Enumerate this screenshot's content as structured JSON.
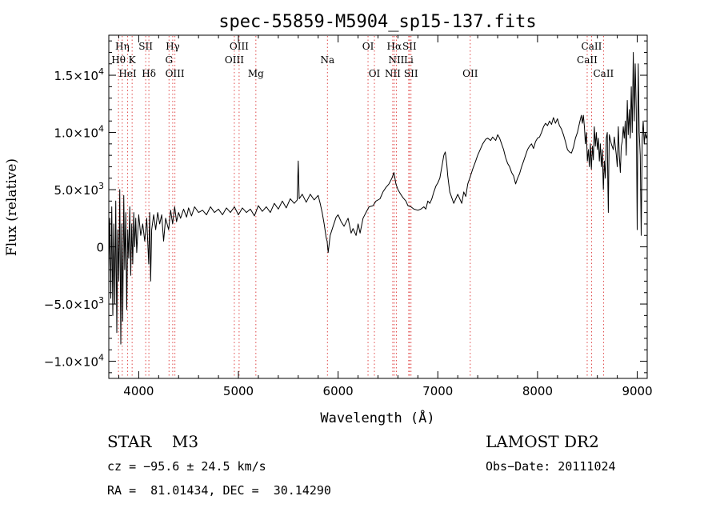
{
  "chart_data": {
    "type": "line",
    "title": "spec-55859-M5904_sp15-137.fits",
    "xlabel": "Wavelength (Å)",
    "ylabel": "Flux (relative)",
    "xlim": [
      3700,
      9100
    ],
    "ylim": [
      -11500,
      18500
    ],
    "xticks": [
      4000,
      5000,
      6000,
      7000,
      8000,
      9000
    ],
    "xtick_labels": [
      "4000",
      "5000",
      "6000",
      "7000",
      "8000",
      "9000"
    ],
    "yticks": [
      {
        "value": 15000,
        "mant": "1.5×10",
        "exp": "4"
      },
      {
        "value": 10000,
        "mant": "1.0×10",
        "exp": "4"
      },
      {
        "value": 5000,
        "mant": "5.0×10",
        "exp": "3"
      },
      {
        "value": 0,
        "mant": "0",
        "exp": ""
      },
      {
        "value": -5000,
        "mant": "−5.0×10",
        "exp": "3"
      },
      {
        "value": -10000,
        "mant": "−1.0×10",
        "exp": "4"
      }
    ],
    "grid": false,
    "series": [
      {
        "color": "#000000",
        "points": [
          [
            3700,
            -2000
          ],
          [
            3710,
            2500
          ],
          [
            3720,
            -4500
          ],
          [
            3730,
            3500
          ],
          [
            3740,
            -6000
          ],
          [
            3750,
            2000
          ],
          [
            3760,
            -5000
          ],
          [
            3770,
            4000
          ],
          [
            3780,
            -7500
          ],
          [
            3790,
            1500
          ],
          [
            3800,
            -3000
          ],
          [
            3810,
            5000
          ],
          [
            3820,
            -8500
          ],
          [
            3830,
            2000
          ],
          [
            3840,
            -6500
          ],
          [
            3850,
            4500
          ],
          [
            3860,
            -2000
          ],
          [
            3870,
            3000
          ],
          [
            3880,
            -5500
          ],
          [
            3890,
            1500
          ],
          [
            3900,
            -1000
          ],
          [
            3910,
            3500
          ],
          [
            3920,
            -2500
          ],
          [
            3930,
            2000
          ],
          [
            3940,
            -1500
          ],
          [
            3950,
            3000
          ],
          [
            3960,
            0
          ],
          [
            3970,
            2500
          ],
          [
            3980,
            -500
          ],
          [
            4000,
            2800
          ],
          [
            4020,
            1000
          ],
          [
            4040,
            2000
          ],
          [
            4060,
            500
          ],
          [
            4080,
            2500
          ],
          [
            4100,
            -1500
          ],
          [
            4110,
            3000
          ],
          [
            4120,
            -3000
          ],
          [
            4130,
            1500
          ],
          [
            4150,
            2800
          ],
          [
            4170,
            1500
          ],
          [
            4190,
            3000
          ],
          [
            4210,
            2000
          ],
          [
            4230,
            2800
          ],
          [
            4250,
            500
          ],
          [
            4270,
            2500
          ],
          [
            4300,
            1500
          ],
          [
            4320,
            3200
          ],
          [
            4340,
            2000
          ],
          [
            4360,
            3500
          ],
          [
            4380,
            2200
          ],
          [
            4400,
            3000
          ],
          [
            4420,
            2500
          ],
          [
            4450,
            3300
          ],
          [
            4480,
            2600
          ],
          [
            4500,
            3400
          ],
          [
            4530,
            2700
          ],
          [
            4560,
            3500
          ],
          [
            4600,
            3000
          ],
          [
            4640,
            3200
          ],
          [
            4680,
            2800
          ],
          [
            4720,
            3500
          ],
          [
            4760,
            3000
          ],
          [
            4800,
            3300
          ],
          [
            4840,
            2800
          ],
          [
            4880,
            3400
          ],
          [
            4920,
            3000
          ],
          [
            4960,
            3500
          ],
          [
            5000,
            2800
          ],
          [
            5040,
            3400
          ],
          [
            5080,
            3000
          ],
          [
            5120,
            3300
          ],
          [
            5160,
            2700
          ],
          [
            5200,
            3600
          ],
          [
            5240,
            3100
          ],
          [
            5280,
            3500
          ],
          [
            5320,
            3000
          ],
          [
            5360,
            3800
          ],
          [
            5400,
            3300
          ],
          [
            5440,
            4000
          ],
          [
            5480,
            3400
          ],
          [
            5520,
            4200
          ],
          [
            5560,
            3800
          ],
          [
            5590,
            4100
          ],
          [
            5600,
            7500
          ],
          [
            5610,
            4200
          ],
          [
            5640,
            4600
          ],
          [
            5680,
            3900
          ],
          [
            5720,
            4600
          ],
          [
            5760,
            4100
          ],
          [
            5800,
            4500
          ],
          [
            5820,
            3800
          ],
          [
            5840,
            3000
          ],
          [
            5860,
            2000
          ],
          [
            5880,
            800
          ],
          [
            5890,
            500
          ],
          [
            5900,
            -500
          ],
          [
            5920,
            1000
          ],
          [
            5950,
            1800
          ],
          [
            5980,
            2600
          ],
          [
            6000,
            2800
          ],
          [
            6030,
            2200
          ],
          [
            6060,
            1800
          ],
          [
            6100,
            2500
          ],
          [
            6130,
            1200
          ],
          [
            6150,
            1600
          ],
          [
            6180,
            1000
          ],
          [
            6200,
            2000
          ],
          [
            6220,
            1200
          ],
          [
            6250,
            2500
          ],
          [
            6280,
            3000
          ],
          [
            6310,
            3500
          ],
          [
            6350,
            3600
          ],
          [
            6380,
            4000
          ],
          [
            6420,
            4200
          ],
          [
            6450,
            4800
          ],
          [
            6480,
            5200
          ],
          [
            6510,
            5500
          ],
          [
            6540,
            6000
          ],
          [
            6560,
            6500
          ],
          [
            6580,
            5500
          ],
          [
            6600,
            5000
          ],
          [
            6620,
            4700
          ],
          [
            6650,
            4300
          ],
          [
            6680,
            4000
          ],
          [
            6700,
            3600
          ],
          [
            6730,
            3500
          ],
          [
            6760,
            3300
          ],
          [
            6800,
            3200
          ],
          [
            6830,
            3300
          ],
          [
            6860,
            3500
          ],
          [
            6880,
            3300
          ],
          [
            6900,
            4000
          ],
          [
            6920,
            3800
          ],
          [
            6940,
            4200
          ],
          [
            6960,
            4800
          ],
          [
            6980,
            5300
          ],
          [
            7000,
            5600
          ],
          [
            7020,
            6000
          ],
          [
            7040,
            7000
          ],
          [
            7060,
            8000
          ],
          [
            7075,
            8300
          ],
          [
            7090,
            7200
          ],
          [
            7100,
            6200
          ],
          [
            7120,
            4800
          ],
          [
            7140,
            4300
          ],
          [
            7160,
            3800
          ],
          [
            7180,
            4200
          ],
          [
            7200,
            4600
          ],
          [
            7220,
            4200
          ],
          [
            7240,
            3800
          ],
          [
            7260,
            4800
          ],
          [
            7280,
            4400
          ],
          [
            7300,
            5500
          ],
          [
            7320,
            6000
          ],
          [
            7350,
            6800
          ],
          [
            7380,
            7500
          ],
          [
            7400,
            8000
          ],
          [
            7420,
            8400
          ],
          [
            7450,
            9000
          ],
          [
            7480,
            9400
          ],
          [
            7500,
            9500
          ],
          [
            7530,
            9300
          ],
          [
            7550,
            9600
          ],
          [
            7580,
            9300
          ],
          [
            7600,
            9800
          ],
          [
            7620,
            9500
          ],
          [
            7640,
            9000
          ],
          [
            7660,
            8500
          ],
          [
            7680,
            7800
          ],
          [
            7700,
            7300
          ],
          [
            7720,
            7000
          ],
          [
            7740,
            6500
          ],
          [
            7760,
            6200
          ],
          [
            7780,
            5500
          ],
          [
            7800,
            6000
          ],
          [
            7820,
            6400
          ],
          [
            7840,
            7000
          ],
          [
            7860,
            7500
          ],
          [
            7880,
            8000
          ],
          [
            7900,
            8500
          ],
          [
            7920,
            8800
          ],
          [
            7940,
            9000
          ],
          [
            7960,
            8600
          ],
          [
            7980,
            9200
          ],
          [
            8000,
            9500
          ],
          [
            8020,
            9600
          ],
          [
            8040,
            10000
          ],
          [
            8060,
            10500
          ],
          [
            8080,
            10800
          ],
          [
            8100,
            10600
          ],
          [
            8120,
            11000
          ],
          [
            8140,
            10700
          ],
          [
            8160,
            11300
          ],
          [
            8180,
            10800
          ],
          [
            8200,
            11200
          ],
          [
            8220,
            10600
          ],
          [
            8240,
            10300
          ],
          [
            8260,
            9800
          ],
          [
            8280,
            9200
          ],
          [
            8300,
            8500
          ],
          [
            8320,
            8300
          ],
          [
            8340,
            8200
          ],
          [
            8360,
            8700
          ],
          [
            8380,
            9500
          ],
          [
            8400,
            10000
          ],
          [
            8420,
            10800
          ],
          [
            8440,
            11500
          ],
          [
            8450,
            10800
          ],
          [
            8460,
            11500
          ],
          [
            8470,
            10500
          ],
          [
            8480,
            9000
          ],
          [
            8490,
            10000
          ],
          [
            8500,
            7500
          ],
          [
            8510,
            8500
          ],
          [
            8520,
            7000
          ],
          [
            8530,
            9000
          ],
          [
            8540,
            6800
          ],
          [
            8550,
            8800
          ],
          [
            8560,
            7600
          ],
          [
            8570,
            10500
          ],
          [
            8580,
            8800
          ],
          [
            8590,
            10000
          ],
          [
            8600,
            8500
          ],
          [
            8610,
            9500
          ],
          [
            8620,
            7500
          ],
          [
            8630,
            9000
          ],
          [
            8640,
            7000
          ],
          [
            8650,
            8500
          ],
          [
            8660,
            5000
          ],
          [
            8670,
            7500
          ],
          [
            8680,
            6000
          ],
          [
            8690,
            9500
          ],
          [
            8700,
            10000
          ],
          [
            8705,
            5500
          ],
          [
            8710,
            3000
          ],
          [
            8715,
            7000
          ],
          [
            8720,
            9800
          ],
          [
            8740,
            9000
          ],
          [
            8760,
            8500
          ],
          [
            8770,
            9600
          ],
          [
            8780,
            8800
          ],
          [
            8790,
            8000
          ],
          [
            8800,
            7000
          ],
          [
            8810,
            10500
          ],
          [
            8820,
            8000
          ],
          [
            8830,
            6500
          ],
          [
            8840,
            8800
          ],
          [
            8850,
            9200
          ],
          [
            8860,
            10500
          ],
          [
            8870,
            9500
          ],
          [
            8880,
            11000
          ],
          [
            8890,
            8000
          ],
          [
            8900,
            12800
          ],
          [
            8910,
            9800
          ],
          [
            8920,
            12000
          ],
          [
            8930,
            9500
          ],
          [
            8940,
            14000
          ],
          [
            8950,
            10000
          ],
          [
            8960,
            17000
          ],
          [
            8970,
            11000
          ],
          [
            8980,
            16000
          ],
          [
            8990,
            12000
          ],
          [
            9000,
            1500
          ],
          [
            9010,
            16000
          ],
          [
            9020,
            10000
          ],
          [
            9030,
            8000
          ],
          [
            9040,
            1000
          ],
          [
            9050,
            9500
          ],
          [
            9060,
            11000
          ],
          [
            9070,
            9000
          ],
          [
            9080,
            10000
          ],
          [
            9090,
            9500
          ],
          [
            9100,
            9800
          ]
        ]
      }
    ],
    "lines": [
      {
        "label": "Hη",
        "x": 3835,
        "row": 0
      },
      {
        "label": "Hθ",
        "x": 3797,
        "row": 1
      },
      {
        "label": "HeI",
        "x": 3889,
        "row": 2
      },
      {
        "label": "SII",
        "x": 4070,
        "row": 0
      },
      {
        "label": "K",
        "x": 3934,
        "row": 1
      },
      {
        "label": "Hδ",
        "x": 4102,
        "row": 2
      },
      {
        "label": "Hγ",
        "x": 4341,
        "row": 0
      },
      {
        "label": "G",
        "x": 4304,
        "row": 1
      },
      {
        "label": "OIII",
        "x": 4363,
        "row": 2
      },
      {
        "label": "OIII",
        "x": 5007,
        "row": 0
      },
      {
        "label": "OIII",
        "x": 4959,
        "row": 1
      },
      {
        "label": "Mg",
        "x": 5175,
        "row": 2
      },
      {
        "label": "Na",
        "x": 5893,
        "row": 1
      },
      {
        "label": "OI",
        "x": 6300,
        "row": 0
      },
      {
        "label": "OI",
        "x": 6364,
        "row": 2
      },
      {
        "label": "Hα",
        "x": 6563,
        "row": 0
      },
      {
        "label": "SII",
        "x": 6716,
        "row": 0
      },
      {
        "label": "NII",
        "x": 6584,
        "row": 1
      },
      {
        "label": "Li",
        "x": 6708,
        "row": 1
      },
      {
        "label": "NII",
        "x": 6548,
        "row": 2
      },
      {
        "label": "SII",
        "x": 6731,
        "row": 2
      },
      {
        "label": "OII",
        "x": 7325,
        "row": 2
      },
      {
        "label": "CaII",
        "x": 8542,
        "row": 0
      },
      {
        "label": "CaII",
        "x": 8498,
        "row": 1
      },
      {
        "label": "CaII",
        "x": 8662,
        "row": 2
      }
    ]
  },
  "info": {
    "class": "STAR    M3",
    "survey": "LAMOST DR2",
    "cz": "cz = −95.6 ± 24.5 km/s",
    "obs_date": "Obs−Date: 20111024",
    "coords": "RA =  81.01434, DEC =  30.14290"
  }
}
